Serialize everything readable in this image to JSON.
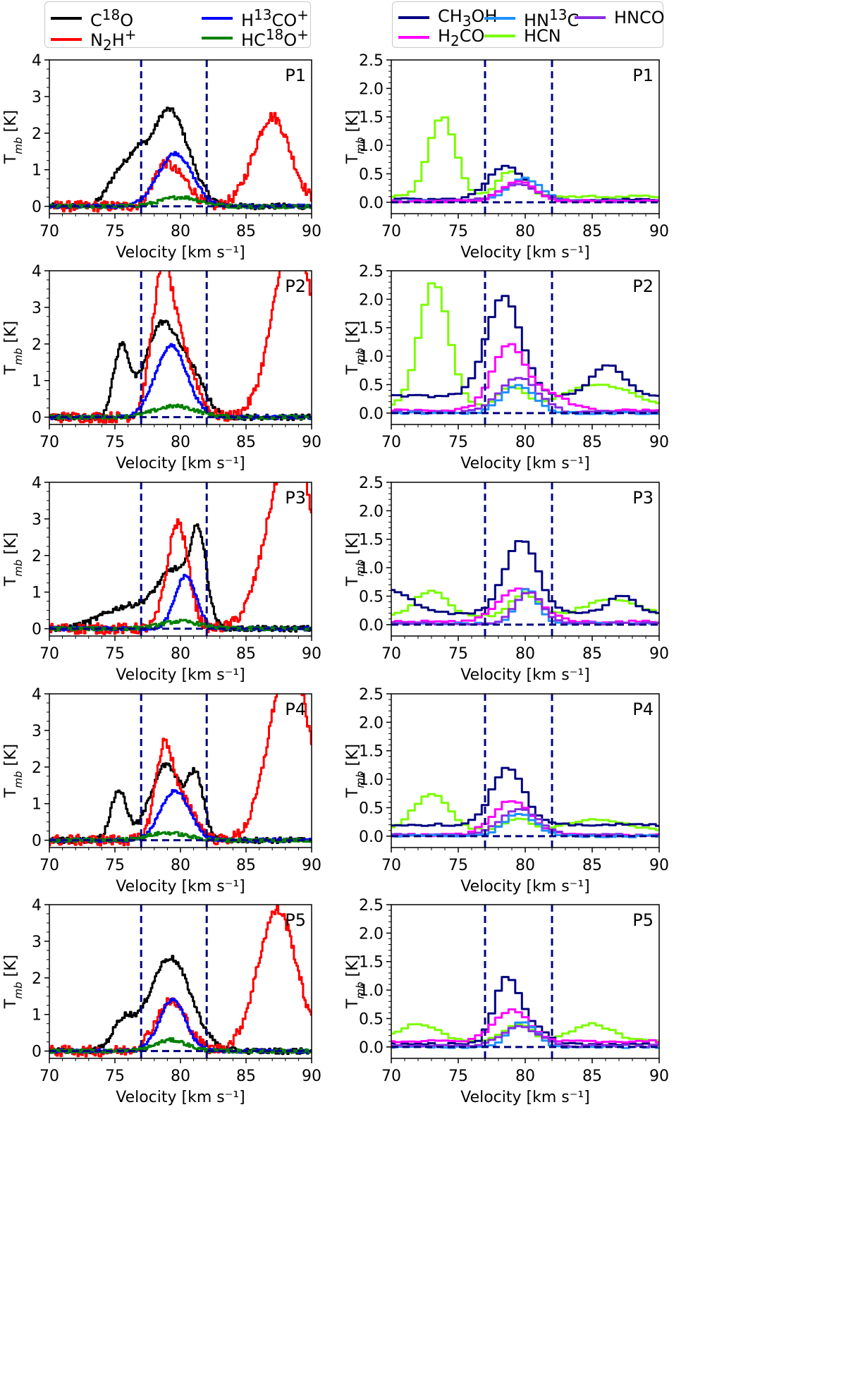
{
  "colors": {
    "C18O": "#000000",
    "N2H+": "#ff0000",
    "H13CO+": "#0000ff",
    "HC18O+": "#008000",
    "CH3OH": "#000080",
    "HN13C": "#1e90ff",
    "HNCO": "#8a2be2",
    "H2CO": "#ff00ff",
    "HCN": "#7cfc00",
    "vline": "#000080"
  },
  "legends": {
    "left": [
      {
        "key": "C18O",
        "html": "C<sup>18</sup>O"
      },
      {
        "key": "H13CO+",
        "html": "H<sup>13</sup>CO<sup>+</sup>"
      },
      {
        "key": "N2H+",
        "html": "N<sub>2</sub>H<sup>+</sup>"
      },
      {
        "key": "HC18O+",
        "html": "HC<sup>18</sup>O<sup>+</sup>"
      }
    ],
    "right": [
      {
        "key": "CH3OH",
        "html": "CH<sub>3</sub>OH"
      },
      {
        "key": "HN13C",
        "html": "HN<sup>13</sup>C"
      },
      {
        "key": "HNCO",
        "html": "HNCO"
      },
      {
        "key": "H2CO",
        "html": "H<sub>2</sub>CO"
      },
      {
        "key": "HCN",
        "html": "HCN"
      }
    ]
  },
  "chart_data": {
    "type": "line",
    "xlabel": "Velocity [km s⁻¹]",
    "ylabel": "T_mb [K]",
    "xlim": [
      70,
      90
    ],
    "xticks": [
      70,
      75,
      80,
      85,
      90
    ],
    "vlines": [
      77,
      82
    ],
    "hline": 0,
    "left": {
      "ylim": [
        -0.2,
        4
      ],
      "yticks": [
        0,
        1,
        2,
        3,
        4
      ],
      "panels": [
        {
          "label": "P1",
          "series": [
            {
              "name": "C18O",
              "peaks": [
                [
                  75.4,
                  0.9,
                  0.9
                ],
                [
                  76.7,
                  0.6,
                  0.6
                ],
                [
                  79.1,
                  2.65,
                  1.5
                ]
              ],
              "noise": 0.08
            },
            {
              "name": "N2H+",
              "peaks": [
                [
                  78.7,
                  1.1,
                  0.8
                ],
                [
                  80.3,
                  0.6,
                  0.8
                ],
                [
                  87.0,
                  2.45,
                  1.4
                ]
              ],
              "noise": 0.15
            },
            {
              "name": "H13CO+",
              "peaks": [
                [
                  79.6,
                  1.45,
                  1.3
                ]
              ],
              "noise": 0.05
            },
            {
              "name": "HC18O+",
              "peaks": [
                [
                  80.0,
                  0.25,
                  1.5
                ]
              ],
              "noise": 0.05
            }
          ]
        },
        {
          "label": "P2",
          "series": [
            {
              "name": "C18O",
              "peaks": [
                [
                  75.5,
                  1.85,
                  0.6
                ],
                [
                  78.6,
                  2.55,
                  1.3
                ],
                [
                  81.0,
                  0.9,
                  1.0
                ]
              ],
              "noise": 0.08
            },
            {
              "name": "N2H+",
              "peaks": [
                [
                  78.6,
                  3.7,
                  0.8
                ],
                [
                  80.2,
                  1.6,
                  1.0
                ],
                [
                  88.6,
                  5.0,
                  1.5
                ]
              ],
              "noise": 0.15
            },
            {
              "name": "H13CO+",
              "peaks": [
                [
                  79.3,
                  1.95,
                  1.2
                ]
              ],
              "noise": 0.05
            },
            {
              "name": "HC18O+",
              "peaks": [
                [
                  79.6,
                  0.3,
                  1.6
                ]
              ],
              "noise": 0.05
            }
          ]
        },
        {
          "label": "P3",
          "series": [
            {
              "name": "C18O",
              "peaks": [
                [
                  76.0,
                  0.6,
                  2.0
                ],
                [
                  79.6,
                  1.5,
                  1.3
                ],
                [
                  81.4,
                  2.2,
                  0.6
                ]
              ],
              "noise": 0.08
            },
            {
              "name": "N2H+",
              "peaks": [
                [
                  79.8,
                  2.9,
                  0.8
                ],
                [
                  88.4,
                  5.0,
                  1.7
                ]
              ],
              "noise": 0.15
            },
            {
              "name": "H13CO+",
              "peaks": [
                [
                  80.4,
                  1.45,
                  0.8
                ]
              ],
              "noise": 0.05
            },
            {
              "name": "HC18O+",
              "peaks": [
                [
                  80.0,
                  0.2,
                  1.5
                ]
              ],
              "noise": 0.05
            }
          ]
        },
        {
          "label": "P4",
          "series": [
            {
              "name": "C18O",
              "peaks": [
                [
                  75.3,
                  1.35,
                  0.6
                ],
                [
                  78.9,
                  2.05,
                  1.2
                ],
                [
                  81.2,
                  1.55,
                  0.6
                ]
              ],
              "noise": 0.08
            },
            {
              "name": "N2H+",
              "peaks": [
                [
                  78.8,
                  2.6,
                  0.7
                ],
                [
                  80.5,
                  0.9,
                  0.8
                ],
                [
                  88.3,
                  5.0,
                  1.5
                ]
              ],
              "noise": 0.15
            },
            {
              "name": "H13CO+",
              "peaks": [
                [
                  79.6,
                  1.35,
                  1.1
                ]
              ],
              "noise": 0.05
            },
            {
              "name": "HC18O+",
              "peaks": [
                [
                  79.0,
                  0.2,
                  1.5
                ]
              ],
              "noise": 0.05
            }
          ]
        },
        {
          "label": "P5",
          "series": [
            {
              "name": "C18O",
              "peaks": [
                [
                  75.6,
                  0.75,
                  0.8
                ],
                [
                  79.2,
                  2.55,
                  1.6
                ]
              ],
              "noise": 0.08
            },
            {
              "name": "N2H+",
              "peaks": [
                [
                  79.3,
                  1.35,
                  1.2
                ],
                [
                  87.4,
                  3.85,
                  1.5
                ]
              ],
              "noise": 0.15
            },
            {
              "name": "H13CO+",
              "peaks": [
                [
                  79.4,
                  1.4,
                  1.0
                ]
              ],
              "noise": 0.05
            },
            {
              "name": "HC18O+",
              "peaks": [
                [
                  79.3,
                  0.3,
                  1.2
                ]
              ],
              "noise": 0.05
            }
          ]
        }
      ]
    },
    "right": {
      "ylim": [
        -0.2,
        2.5
      ],
      "yticks": [
        0.0,
        0.5,
        1.0,
        1.5,
        2.0,
        2.5
      ],
      "panels": [
        {
          "label": "P1",
          "series": [
            {
              "name": "HCN",
              "peaks": [
                [
                  73.8,
                  1.4,
                  1.0
                ],
                [
                  79.0,
                  0.45,
                  1.0
                ]
              ],
              "base": 0.1,
              "noise": 0.02
            },
            {
              "name": "CH3OH",
              "peaks": [
                [
                  78.6,
                  0.6,
                  1.3
                ]
              ],
              "base": 0.05,
              "noise": 0.02
            },
            {
              "name": "HN13C",
              "peaks": [
                [
                  80.0,
                  0.4,
                  1.2
                ]
              ],
              "base": 0.02,
              "noise": 0.02
            },
            {
              "name": "HNCO",
              "peaks": [
                [
                  79.5,
                  0.3,
                  1.4
                ]
              ],
              "base": 0.02,
              "noise": 0.02
            },
            {
              "name": "H2CO",
              "peaks": [
                [
                  79.5,
                  0.35,
                  1.2
                ]
              ],
              "base": 0.02,
              "noise": 0.02
            }
          ]
        },
        {
          "label": "P2",
          "series": [
            {
              "name": "HCN",
              "peaks": [
                [
                  73.2,
                  2.2,
                  1.1
                ],
                [
                  79.0,
                  0.35,
                  1.0
                ],
                [
                  85.5,
                  0.4,
                  2.5
                ]
              ],
              "base": 0.1,
              "noise": 0.02
            },
            {
              "name": "CH3OH",
              "peaks": [
                [
                  78.4,
                  1.75,
                  1.3
                ],
                [
                  86.2,
                  0.55,
                  1.2
                ]
              ],
              "base": 0.3,
              "noise": 0.02
            },
            {
              "name": "H2CO",
              "peaks": [
                [
                  78.7,
                  1.1,
                  1.2
                ],
                [
                  81.5,
                  0.3,
                  1.5
                ]
              ],
              "base": 0.05,
              "noise": 0.02
            },
            {
              "name": "HNCO",
              "peaks": [
                [
                  79.5,
                  0.6,
                  1.4
                ]
              ],
              "base": 0.02,
              "noise": 0.02
            },
            {
              "name": "HN13C",
              "peaks": [
                [
                  79.5,
                  0.5,
                  1.2
                ]
              ],
              "base": 0.0,
              "noise": 0.02
            }
          ]
        },
        {
          "label": "P3",
          "series": [
            {
              "name": "HCN",
              "peaks": [
                [
                  73.0,
                  0.45,
                  1.2
                ],
                [
                  80.0,
                  0.4,
                  1.0
                ],
                [
                  86.5,
                  0.3,
                  2.0
                ]
              ],
              "base": 0.15,
              "noise": 0.02
            },
            {
              "name": "CH3OH",
              "peaks": [
                [
                  79.7,
                  1.3,
                  1.2
                ],
                [
                  87.2,
                  0.3,
                  1.0
                ],
                [
                  70.0,
                  0.4,
                  1.5
                ]
              ],
              "base": 0.2,
              "noise": 0.02
            },
            {
              "name": "H2CO",
              "peaks": [
                [
                  79.6,
                  0.6,
                  1.5
                ]
              ],
              "base": 0.05,
              "noise": 0.02
            },
            {
              "name": "HN13C",
              "peaks": [
                [
                  80.2,
                  0.6,
                  0.8
                ]
              ],
              "base": 0.02,
              "noise": 0.02
            },
            {
              "name": "HNCO",
              "peaks": [
                [
                  80.3,
                  0.55,
                  1.0
                ]
              ],
              "base": 0.02,
              "noise": 0.02
            }
          ]
        },
        {
          "label": "P4",
          "series": [
            {
              "name": "HCN",
              "peaks": [
                [
                  73.0,
                  0.65,
                  1.3
                ],
                [
                  79.5,
                  0.2,
                  1.0
                ],
                [
                  85.5,
                  0.2,
                  2.0
                ]
              ],
              "base": 0.1,
              "noise": 0.02
            },
            {
              "name": "CH3OH",
              "peaks": [
                [
                  78.7,
                  1.0,
                  1.2
                ]
              ],
              "base": 0.2,
              "noise": 0.02
            },
            {
              "name": "H2CO",
              "peaks": [
                [
                  79.0,
                  0.6,
                  1.4
                ]
              ],
              "base": 0.02,
              "noise": 0.02
            },
            {
              "name": "HNCO",
              "peaks": [
                [
                  79.6,
                  0.45,
                  1.4
                ]
              ],
              "base": 0.02,
              "noise": 0.02
            },
            {
              "name": "HN13C",
              "peaks": [
                [
                  79.6,
                  0.4,
                  1.2
                ]
              ],
              "base": 0.0,
              "noise": 0.02
            }
          ]
        },
        {
          "label": "P5",
          "series": [
            {
              "name": "HCN",
              "peaks": [
                [
                  72.0,
                  0.3,
                  1.5
                ],
                [
                  79.5,
                  0.3,
                  1.0
                ],
                [
                  85.0,
                  0.3,
                  1.5
                ]
              ],
              "base": 0.1,
              "noise": 0.02
            },
            {
              "name": "CH3OH",
              "peaks": [
                [
                  78.6,
                  1.15,
                  0.9
                ],
                [
                  80.5,
                  0.3,
                  1.0
                ]
              ],
              "base": 0.05,
              "noise": 0.02
            },
            {
              "name": "H2CO",
              "peaks": [
                [
                  79.0,
                  0.55,
                  1.3
                ]
              ],
              "base": 0.1,
              "noise": 0.02
            },
            {
              "name": "HN13C",
              "peaks": [
                [
                  79.8,
                  0.45,
                  1.0
                ]
              ],
              "base": 0.0,
              "noise": 0.02
            },
            {
              "name": "HNCO",
              "peaks": [
                [
                  79.6,
                  0.35,
                  1.3
                ]
              ],
              "base": 0.02,
              "noise": 0.02
            }
          ]
        }
      ]
    }
  }
}
